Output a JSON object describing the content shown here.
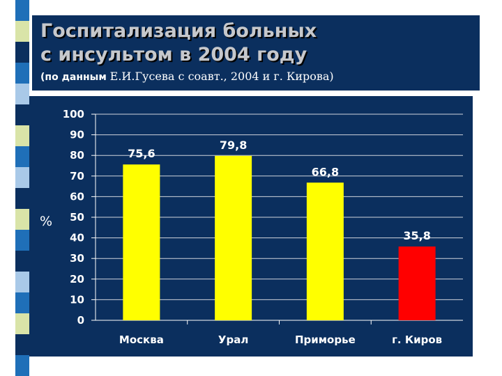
{
  "header": {
    "title_line1": "Госпитализация больных",
    "title_line2": "с инсультом в 2004 году",
    "subtitle_prefix": "(по данным",
    "subtitle_rest": "Е.И.Гусева с соавт., 2004 и г. Кирова)"
  },
  "colors": {
    "background": "#0b2f5e",
    "bar_default": "#ffff00",
    "bar_highlight": "#ff0000",
    "text": "#ffffff",
    "title_text": "#c6c8cc"
  },
  "chart_data": {
    "type": "bar",
    "categories": [
      "Москва",
      "Урал",
      "Приморье",
      "г. Киров"
    ],
    "values": [
      75.6,
      79.8,
      66.8,
      35.8
    ],
    "value_labels": [
      "75,6",
      "79,8",
      "66,8",
      "35,8"
    ],
    "bar_colors": [
      "#ffff00",
      "#ffff00",
      "#ffff00",
      "#ff0000"
    ],
    "ylabel": "%",
    "ylim": [
      0,
      100
    ],
    "yticks": [
      0,
      10,
      20,
      30,
      40,
      50,
      60,
      70,
      80,
      90,
      100
    ],
    "grid": true
  }
}
